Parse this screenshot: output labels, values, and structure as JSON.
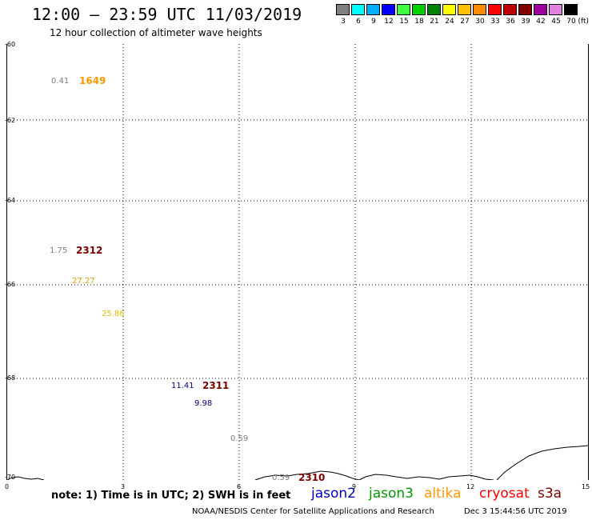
{
  "header": {
    "title": "12:00 — 23:59 UTC 11/03/2019",
    "subtitle": "12 hour collection of altimeter wave heights"
  },
  "legend": {
    "unit": "(ft)",
    "items": [
      {
        "label": "3",
        "color": "#808080"
      },
      {
        "label": "6",
        "color": "#00ffff"
      },
      {
        "label": "9",
        "color": "#00b0ff"
      },
      {
        "label": "12",
        "color": "#0000ff"
      },
      {
        "label": "15",
        "color": "#40ff40"
      },
      {
        "label": "18",
        "color": "#00d000"
      },
      {
        "label": "21",
        "color": "#008000"
      },
      {
        "label": "24",
        "color": "#ffff00"
      },
      {
        "label": "27",
        "color": "#ffc000"
      },
      {
        "label": "30",
        "color": "#ff8c00"
      },
      {
        "label": "33",
        "color": "#ff0000"
      },
      {
        "label": "36",
        "color": "#c00000"
      },
      {
        "label": "39",
        "color": "#800000"
      },
      {
        "label": "42",
        "color": "#a000a0"
      },
      {
        "label": "45",
        "color": "#e080e0"
      },
      {
        "label": "70",
        "color": "#000000"
      }
    ]
  },
  "map": {
    "lat_labels": [
      "-60",
      "-62",
      "-64",
      "-66",
      "-68",
      "-70"
    ],
    "lon_labels": [
      "0",
      "3",
      "6",
      "9",
      "12",
      "15"
    ],
    "observations": [
      {
        "value": "0.41",
        "color": "#808080"
      },
      {
        "value": "1.75",
        "color": "#808080"
      },
      {
        "value": "27.27",
        "color": "#e0a000"
      },
      {
        "value": "25.86",
        "color": "#e0c000"
      },
      {
        "value": "11.41",
        "color": "#000080"
      },
      {
        "value": "9.98",
        "color": "#000080"
      },
      {
        "value": "0.59",
        "color": "#808080"
      },
      {
        "value": "0.59",
        "color": "#808080"
      }
    ],
    "pass_ids": [
      {
        "id": "1649",
        "color": "#ff9900"
      },
      {
        "id": "2312",
        "color": "#800000"
      },
      {
        "id": "2311",
        "color": "#800000"
      },
      {
        "id": "2310",
        "color": "#800000"
      }
    ]
  },
  "footer": {
    "note": "note: 1) Time is in UTC; 2) SWH is in feet",
    "satellites": [
      {
        "name": "jason2",
        "color": "#0000cc"
      },
      {
        "name": "jason3",
        "color": "#009900"
      },
      {
        "name": "altika",
        "color": "#ff9900"
      },
      {
        "name": "cryosat",
        "color": "#ff0000"
      },
      {
        "name": "s3a",
        "color": "#800000"
      }
    ],
    "credit": "NOAA/NESDIS Center for Satellite Applications and Research",
    "timestamp": "Dec  3 15:44:56 UTC 2019"
  }
}
